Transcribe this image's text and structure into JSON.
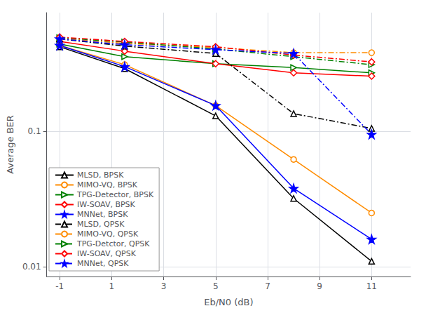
{
  "chart_data": {
    "type": "line",
    "x": [
      -1,
      1.5,
      5,
      8,
      11
    ],
    "xlabel": "Eb/N0 (dB)",
    "ylabel": "Average BER",
    "xlim": [
      -1.5,
      12.5
    ],
    "ylim": [
      0.0085,
      0.75
    ],
    "xticks": [
      -1,
      1,
      3,
      5,
      7,
      9,
      11
    ],
    "yticks": [
      0.01,
      0.1
    ],
    "log": "y",
    "grid": true,
    "legend": "lower left",
    "series": [
      {
        "name": "MLSD, BPSK",
        "color": "#000000",
        "marker": "triangle_up",
        "line_style": "solid",
        "values": [
          0.42,
          0.29,
          0.13,
          0.032,
          0.011
        ]
      },
      {
        "name": "MIMO-VQ, BPSK",
        "color": "#FF8C00",
        "marker": "circle",
        "line_style": "solid",
        "values": [
          0.43,
          0.31,
          0.155,
          0.062,
          0.025
        ]
      },
      {
        "name": "TPG-Detector, BPSK",
        "color": "#008000",
        "marker": "triangle_right",
        "line_style": "solid",
        "values": [
          0.44,
          0.355,
          0.315,
          0.295,
          0.27
        ]
      },
      {
        "name": "IW-SOAV, BPSK",
        "color": "#FF0000",
        "marker": "diamond",
        "line_style": "solid",
        "values": [
          0.46,
          0.39,
          0.315,
          0.27,
          0.255
        ]
      },
      {
        "name": "MNNet, BPSK",
        "color": "#0000FF",
        "marker": "star",
        "line_style": "solid",
        "values": [
          0.43,
          0.3,
          0.155,
          0.038,
          0.016
        ]
      },
      {
        "name": "MLSD, QPSK",
        "color": "#000000",
        "marker": "triangle_up",
        "line_style": "dashdot",
        "values": [
          0.48,
          0.425,
          0.375,
          0.135,
          0.105
        ]
      },
      {
        "name": "MIMO-VQ, QPSK",
        "color": "#FF8C00",
        "marker": "circle",
        "line_style": "dashdot",
        "values": [
          0.485,
          0.445,
          0.415,
          0.38,
          0.38
        ]
      },
      {
        "name": "TPG-Detctor, QPSK",
        "color": "#008000",
        "marker": "triangle_right",
        "line_style": "dashdot",
        "values": [
          0.49,
          0.455,
          0.405,
          0.355,
          0.31
        ]
      },
      {
        "name": "IW-SOAV, QPSK",
        "color": "#FF0000",
        "marker": "diamond",
        "line_style": "dashdot",
        "values": [
          0.495,
          0.46,
          0.42,
          0.365,
          0.325
        ]
      },
      {
        "name": "MNNet, QPSK",
        "color": "#0000FF",
        "marker": "star",
        "line_style": "dashdot",
        "values": [
          0.48,
          0.435,
          0.4,
          0.375,
          0.095
        ]
      }
    ]
  }
}
